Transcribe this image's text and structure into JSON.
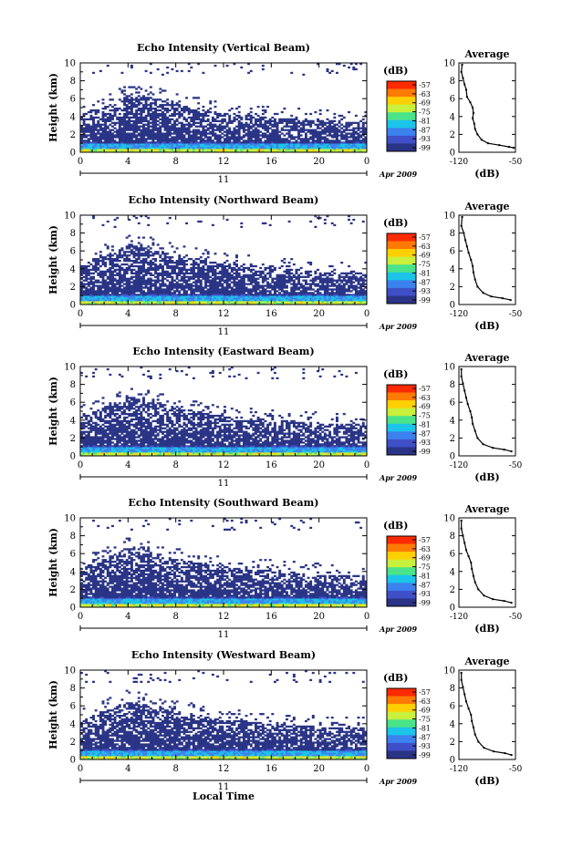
{
  "figure": {
    "xlabel": "Local Time",
    "date_label": "Apr 2009",
    "day_label": "11",
    "ylabel": "Height (km)",
    "unit_label": "(dB)",
    "profile_title": "Average",
    "profile_xlabel": "(dB)"
  },
  "colorbar": {
    "ticks": [
      "-57",
      "-63",
      "-69",
      "-75",
      "-81",
      "-87",
      "-93",
      "-99"
    ],
    "colors": [
      "#ff2a00",
      "#ff7a00",
      "#ffd000",
      "#c8f03c",
      "#4be38a",
      "#1bc4e8",
      "#3c82ee",
      "#3f4fc8",
      "#2a3486"
    ]
  },
  "chart_data": [
    {
      "type": "heatmap",
      "title": "Echo Intensity (Vertical Beam)",
      "xlabel": "",
      "ylabel": "Height (km)",
      "xlim": [
        0,
        24
      ],
      "ylim": [
        0,
        10
      ],
      "x_ticks": [
        "0",
        "4",
        "8",
        "12",
        "16",
        "20",
        "0"
      ],
      "y_ticks": [
        "0",
        "2",
        "4",
        "6",
        "8",
        "10"
      ],
      "z_range_db": [
        -99,
        -57
      ],
      "echo_top_km": [
        [
          0,
          4.2
        ],
        [
          3,
          5.6
        ],
        [
          4,
          6.6
        ],
        [
          6,
          6.2
        ],
        [
          8,
          5.4
        ],
        [
          12,
          4.4
        ],
        [
          16,
          4.0
        ],
        [
          20,
          3.6
        ],
        [
          24,
          3.4
        ]
      ],
      "profile": {
        "title": "Average",
        "xlabel": "(dB)",
        "xlim": [
          -120,
          -50
        ],
        "ylim": [
          0,
          10
        ],
        "x_ticks": [
          "-120",
          "-50"
        ],
        "points": [
          [
            -116,
            9.8
          ],
          [
            -117,
            9.0
          ],
          [
            -115,
            8.3
          ],
          [
            -113,
            7.6
          ],
          [
            -111,
            7.0
          ],
          [
            -110,
            6.2
          ],
          [
            -106,
            5.6
          ],
          [
            -103,
            5.0
          ],
          [
            -102,
            4.4
          ],
          [
            -103,
            3.8
          ],
          [
            -101,
            3.2
          ],
          [
            -100,
            2.6
          ],
          [
            -97,
            2.0
          ],
          [
            -92,
            1.4
          ],
          [
            -84,
            1.0
          ],
          [
            -70,
            0.8
          ],
          [
            -58,
            0.6
          ],
          [
            -52,
            0.5
          ]
        ]
      }
    },
    {
      "type": "heatmap",
      "title": "Echo Intensity (Northward Beam)",
      "xlabel": "",
      "ylabel": "Height (km)",
      "xlim": [
        0,
        24
      ],
      "ylim": [
        0,
        10
      ],
      "x_ticks": [
        "0",
        "4",
        "8",
        "12",
        "16",
        "20",
        "0"
      ],
      "y_ticks": [
        "0",
        "2",
        "4",
        "6",
        "8",
        "10"
      ],
      "z_range_db": [
        -99,
        -57
      ],
      "echo_top_km": [
        [
          0,
          4.4
        ],
        [
          3,
          6.0
        ],
        [
          4,
          6.8
        ],
        [
          6,
          6.3
        ],
        [
          8,
          5.5
        ],
        [
          12,
          4.6
        ],
        [
          16,
          4.2
        ],
        [
          20,
          3.7
        ],
        [
          24,
          3.5
        ]
      ],
      "profile": {
        "title": "Average",
        "xlabel": "(dB)",
        "xlim": [
          -120,
          -50
        ],
        "ylim": [
          0,
          10
        ],
        "x_ticks": [
          "-120",
          "-50"
        ],
        "points": [
          [
            -116,
            9.8
          ],
          [
            -117,
            8.8
          ],
          [
            -114,
            8.0
          ],
          [
            -112,
            7.2
          ],
          [
            -110,
            6.5
          ],
          [
            -108,
            5.8
          ],
          [
            -105,
            5.0
          ],
          [
            -103,
            4.3
          ],
          [
            -102,
            3.6
          ],
          [
            -100,
            2.8
          ],
          [
            -97,
            2.0
          ],
          [
            -90,
            1.3
          ],
          [
            -80,
            0.9
          ],
          [
            -66,
            0.7
          ],
          [
            -56,
            0.5
          ]
        ]
      }
    },
    {
      "type": "heatmap",
      "title": "Echo Intensity (Eastward Beam)",
      "xlabel": "",
      "ylabel": "Height (km)",
      "xlim": [
        0,
        24
      ],
      "ylim": [
        0,
        10
      ],
      "x_ticks": [
        "0",
        "4",
        "8",
        "12",
        "16",
        "20",
        "0"
      ],
      "y_ticks": [
        "0",
        "2",
        "4",
        "6",
        "8",
        "10"
      ],
      "z_range_db": [
        -99,
        -57
      ],
      "echo_top_km": [
        [
          0,
          4.4
        ],
        [
          3,
          6.0
        ],
        [
          4,
          6.7
        ],
        [
          6,
          6.2
        ],
        [
          8,
          5.4
        ],
        [
          12,
          4.5
        ],
        [
          16,
          4.1
        ],
        [
          20,
          3.7
        ],
        [
          24,
          3.6
        ]
      ],
      "profile": {
        "title": "Average",
        "xlabel": "(dB)",
        "xlim": [
          -120,
          -50
        ],
        "ylim": [
          0,
          10
        ],
        "x_ticks": [
          "-120",
          "-50"
        ],
        "points": [
          [
            -117,
            9.7
          ],
          [
            -117,
            8.9
          ],
          [
            -115,
            8.1
          ],
          [
            -113,
            7.3
          ],
          [
            -111,
            6.5
          ],
          [
            -109,
            5.8
          ],
          [
            -106,
            5.0
          ],
          [
            -104,
            4.3
          ],
          [
            -103,
            3.6
          ],
          [
            -100,
            2.8
          ],
          [
            -97,
            2.0
          ],
          [
            -90,
            1.3
          ],
          [
            -78,
            0.9
          ],
          [
            -64,
            0.7
          ],
          [
            -55,
            0.5
          ]
        ]
      }
    },
    {
      "type": "heatmap",
      "title": "Echo Intensity (Southward Beam)",
      "xlabel": "",
      "ylabel": "Height (km)",
      "xlim": [
        0,
        24
      ],
      "ylim": [
        0,
        10
      ],
      "x_ticks": [
        "0",
        "4",
        "8",
        "12",
        "16",
        "20",
        "0"
      ],
      "y_ticks": [
        "0",
        "2",
        "4",
        "6",
        "8",
        "10"
      ],
      "z_range_db": [
        -99,
        -57
      ],
      "echo_top_km": [
        [
          0,
          4.4
        ],
        [
          3,
          6.0
        ],
        [
          4,
          6.7
        ],
        [
          6,
          6.2
        ],
        [
          8,
          5.4
        ],
        [
          12,
          4.5
        ],
        [
          16,
          4.1
        ],
        [
          20,
          3.7
        ],
        [
          24,
          3.5
        ]
      ],
      "profile": {
        "title": "Average",
        "xlabel": "(dB)",
        "xlim": [
          -120,
          -50
        ],
        "ylim": [
          0,
          10
        ],
        "x_ticks": [
          "-120",
          "-50"
        ],
        "points": [
          [
            -117,
            9.7
          ],
          [
            -117,
            8.8
          ],
          [
            -115,
            8.0
          ],
          [
            -113,
            7.2
          ],
          [
            -111,
            6.4
          ],
          [
            -108,
            5.7
          ],
          [
            -105,
            5.0
          ],
          [
            -104,
            4.3
          ],
          [
            -102,
            3.5
          ],
          [
            -100,
            2.8
          ],
          [
            -96,
            2.0
          ],
          [
            -89,
            1.3
          ],
          [
            -78,
            0.9
          ],
          [
            -64,
            0.7
          ],
          [
            -55,
            0.5
          ]
        ]
      }
    },
    {
      "type": "heatmap",
      "title": "Echo Intensity (Westward Beam)",
      "xlabel": "Local Time",
      "ylabel": "Height (km)",
      "xlim": [
        0,
        24
      ],
      "ylim": [
        0,
        10
      ],
      "x_ticks": [
        "0",
        "4",
        "8",
        "12",
        "16",
        "20",
        "0"
      ],
      "y_ticks": [
        "0",
        "2",
        "4",
        "6",
        "8",
        "10"
      ],
      "z_range_db": [
        -99,
        -57
      ],
      "echo_top_km": [
        [
          0,
          4.4
        ],
        [
          3,
          6.0
        ],
        [
          4,
          6.6
        ],
        [
          6,
          6.2
        ],
        [
          8,
          5.4
        ],
        [
          12,
          4.5
        ],
        [
          16,
          4.1
        ],
        [
          20,
          3.7
        ],
        [
          24,
          3.5
        ]
      ],
      "profile": {
        "title": "Average",
        "xlabel": "(dB)",
        "xlim": [
          -120,
          -50
        ],
        "ylim": [
          0,
          10
        ],
        "x_ticks": [
          "-120",
          "-50"
        ],
        "points": [
          [
            -117,
            9.7
          ],
          [
            -117,
            8.9
          ],
          [
            -115,
            8.1
          ],
          [
            -113,
            7.3
          ],
          [
            -111,
            6.5
          ],
          [
            -108,
            5.7
          ],
          [
            -105,
            5.0
          ],
          [
            -104,
            4.3
          ],
          [
            -102,
            3.6
          ],
          [
            -100,
            2.8
          ],
          [
            -96,
            2.0
          ],
          [
            -89,
            1.3
          ],
          [
            -77,
            0.9
          ],
          [
            -63,
            0.7
          ],
          [
            -55,
            0.5
          ]
        ]
      }
    }
  ]
}
